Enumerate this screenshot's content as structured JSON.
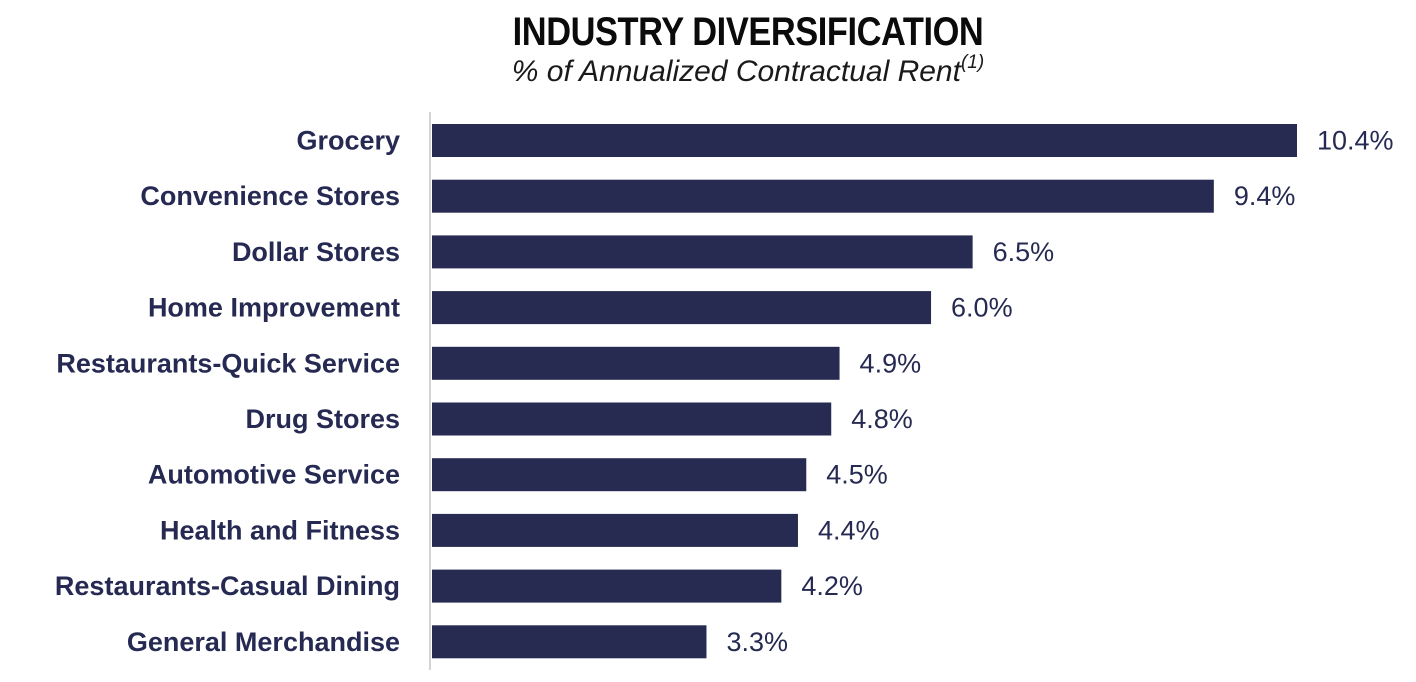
{
  "chart_data": {
    "type": "bar",
    "orientation": "horizontal",
    "title": "INDUSTRY DIVERSIFICATION",
    "subtitle": "% of Annualized Contractual Rent",
    "subtitle_footnote": "(1)",
    "categories": [
      "Grocery",
      "Convenience Stores",
      "Dollar Stores",
      "Home Improvement",
      "Restaurants-Quick Service",
      "Drug Stores",
      "Automotive Service",
      "Health and Fitness",
      "Restaurants-Casual Dining",
      "General Merchandise"
    ],
    "values": [
      10.4,
      9.4,
      6.5,
      6.0,
      4.9,
      4.8,
      4.5,
      4.4,
      4.2,
      3.3
    ],
    "value_labels": [
      "10.4%",
      "9.4%",
      "6.5%",
      "6.0%",
      "4.9%",
      "4.8%",
      "4.5%",
      "4.4%",
      "4.2%",
      "3.3%"
    ],
    "xlim": [
      0,
      10.4
    ],
    "grid": false,
    "legend": "none",
    "colors": {
      "bar": "#272a51",
      "axis": "#d4d4d4",
      "label": "#262a52"
    }
  }
}
